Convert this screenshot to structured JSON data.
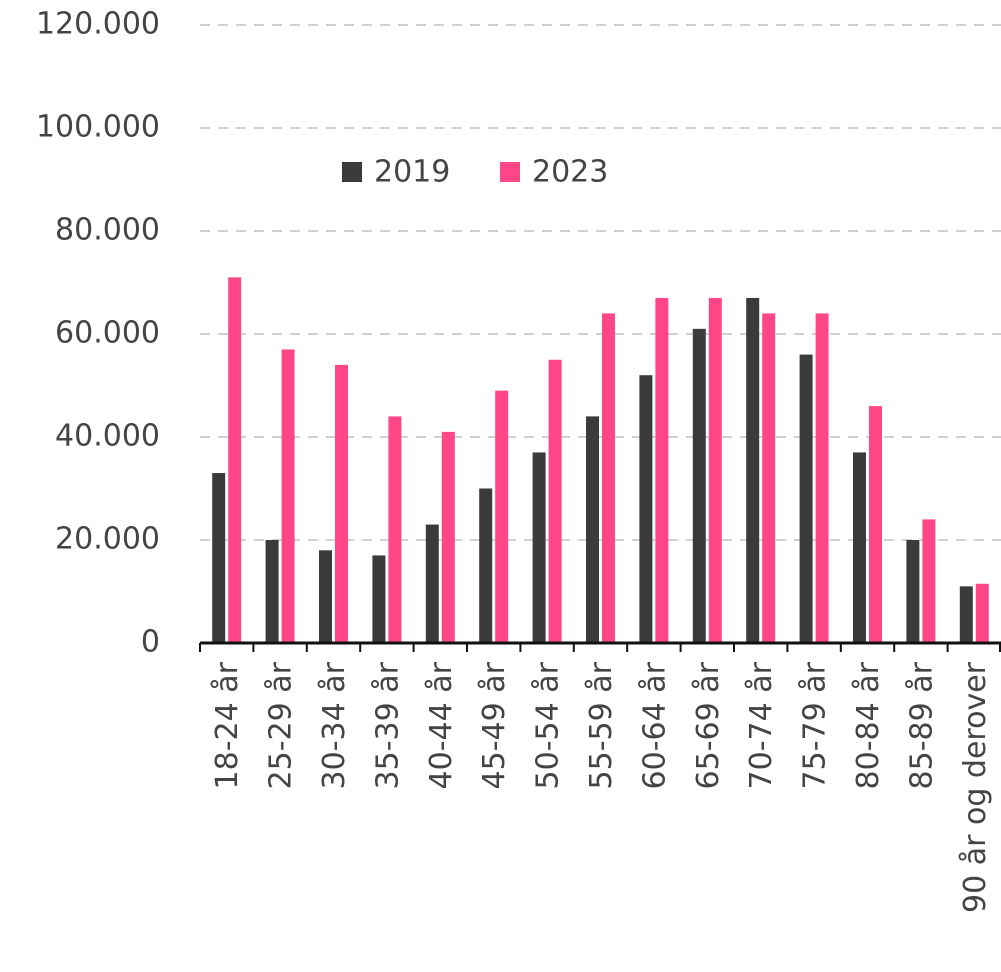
{
  "chart_data": {
    "type": "bar",
    "categories": [
      "18-24 år",
      "25-29 år",
      "30-34 år",
      "35-39 år",
      "40-44 år",
      "45-49 år",
      "50-54 år",
      "55-59 år",
      "60-64 år",
      "65-69 år",
      "70-74 år",
      "75-79 år",
      "80-84 år",
      "85-89 år",
      "90 år og derover"
    ],
    "series": [
      {
        "name": "2019",
        "color": "#3b3b3b",
        "values": [
          33000,
          20000,
          18000,
          17000,
          23000,
          30000,
          37000,
          44000,
          52000,
          61000,
          67000,
          56000,
          37000,
          20000,
          11000
        ]
      },
      {
        "name": "2023",
        "color": "#ff4787",
        "values": [
          71000,
          57000,
          54000,
          44000,
          41000,
          49000,
          55000,
          64000,
          67000,
          67000,
          64000,
          64000,
          46000,
          24000,
          11500
        ]
      }
    ],
    "ylim": [
      0,
      120000
    ],
    "yticks": [
      0,
      {
        "value": 20000,
        "label": "20.000"
      },
      {
        "value": 40000,
        "label": "40.000"
      },
      {
        "value": 60000,
        "label": "60.000"
      },
      {
        "value": 80000,
        "label": "80.000"
      },
      {
        "value": 100000,
        "label": "100.000"
      },
      {
        "value": 120000,
        "label": "120.000"
      }
    ],
    "grid": true
  }
}
